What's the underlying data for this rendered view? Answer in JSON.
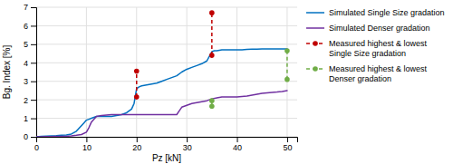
{
  "chart_data": {
    "type": "line",
    "xlabel": "Pz [kN]",
    "ylabel": "Bg. Index [%]",
    "xlim": [
      0,
      52
    ],
    "ylim": [
      0,
      7
    ],
    "xticks": [
      0,
      10,
      20,
      30,
      40,
      50
    ],
    "yticks": [
      0,
      1,
      2,
      3,
      4,
      5,
      6,
      7
    ],
    "grid": true,
    "legend": "right",
    "series": [
      {
        "name": "Simulated Single Size gradation",
        "color": "#0070C0",
        "type": "line",
        "x": [
          0,
          1,
          2,
          3,
          4,
          5,
          6,
          7,
          8,
          8.5,
          9,
          9.5,
          10,
          10.5,
          11,
          11.5,
          12,
          13,
          14,
          15,
          16,
          17,
          18,
          19,
          19.5,
          20,
          20.5,
          21,
          22,
          23,
          24,
          25,
          26,
          27,
          28,
          29,
          30,
          31,
          32,
          33,
          34,
          35,
          35.5,
          36,
          37,
          38,
          39,
          40,
          41,
          42,
          43,
          44,
          45,
          46,
          47,
          48,
          49,
          50
        ],
        "values": [
          0,
          0.02,
          0.04,
          0.05,
          0.06,
          0.08,
          0.1,
          0.15,
          0.3,
          0.45,
          0.6,
          0.75,
          0.9,
          0.95,
          1.0,
          1.05,
          1.1,
          1.1,
          1.1,
          1.1,
          1.15,
          1.2,
          1.3,
          1.5,
          1.8,
          2.6,
          2.7,
          2.75,
          2.8,
          2.85,
          2.9,
          3.0,
          3.1,
          3.2,
          3.3,
          3.5,
          3.65,
          3.75,
          3.85,
          3.95,
          4.1,
          4.6,
          4.65,
          4.65,
          4.7,
          4.7,
          4.7,
          4.7,
          4.7,
          4.72,
          4.73,
          4.74,
          4.75,
          4.75,
          4.75,
          4.75,
          4.75,
          4.75
        ]
      },
      {
        "name": "Simulated Denser gradation",
        "color": "#7030A0",
        "type": "line",
        "x": [
          0,
          1,
          2,
          3,
          4,
          5,
          6,
          7,
          8,
          9,
          10,
          10.5,
          11,
          12,
          13,
          14,
          15,
          16,
          17,
          18,
          19,
          20,
          21,
          22,
          23,
          24,
          25,
          26,
          27,
          28,
          28.5,
          29,
          29.5,
          30,
          30.5,
          31,
          32,
          33,
          34,
          35,
          36,
          37,
          38,
          39,
          40,
          41,
          42,
          43,
          44,
          45,
          46,
          47,
          48,
          49,
          50
        ],
        "values": [
          0,
          0.0,
          0.01,
          0.01,
          0.02,
          0.02,
          0.03,
          0.05,
          0.08,
          0.12,
          0.25,
          0.5,
          0.8,
          1.1,
          1.15,
          1.18,
          1.2,
          1.2,
          1.2,
          1.2,
          1.2,
          1.2,
          1.2,
          1.2,
          1.2,
          1.2,
          1.2,
          1.2,
          1.2,
          1.2,
          1.4,
          1.6,
          1.65,
          1.7,
          1.75,
          1.8,
          1.85,
          1.9,
          1.95,
          2.05,
          2.1,
          2.15,
          2.15,
          2.15,
          2.15,
          2.18,
          2.2,
          2.25,
          2.3,
          2.35,
          2.38,
          2.4,
          2.42,
          2.45,
          2.5
        ]
      },
      {
        "name": "Measured highest & lowest\nSingle Size gradation",
        "color": "#C00000",
        "type": "errorbar",
        "line_style": "dashed",
        "marker": "circle",
        "x": [
          20,
          35
        ],
        "high": [
          3.55,
          6.7
        ],
        "low": [
          2.15,
          4.4
        ]
      },
      {
        "name": "Measured highest & lowest\nDenser gradation",
        "color": "#70AD47",
        "type": "errorbar",
        "line_style": "dashed",
        "marker": "circle",
        "x": [
          35,
          50
        ],
        "high": [
          1.95,
          4.65
        ],
        "low": [
          1.65,
          3.1
        ]
      }
    ]
  }
}
